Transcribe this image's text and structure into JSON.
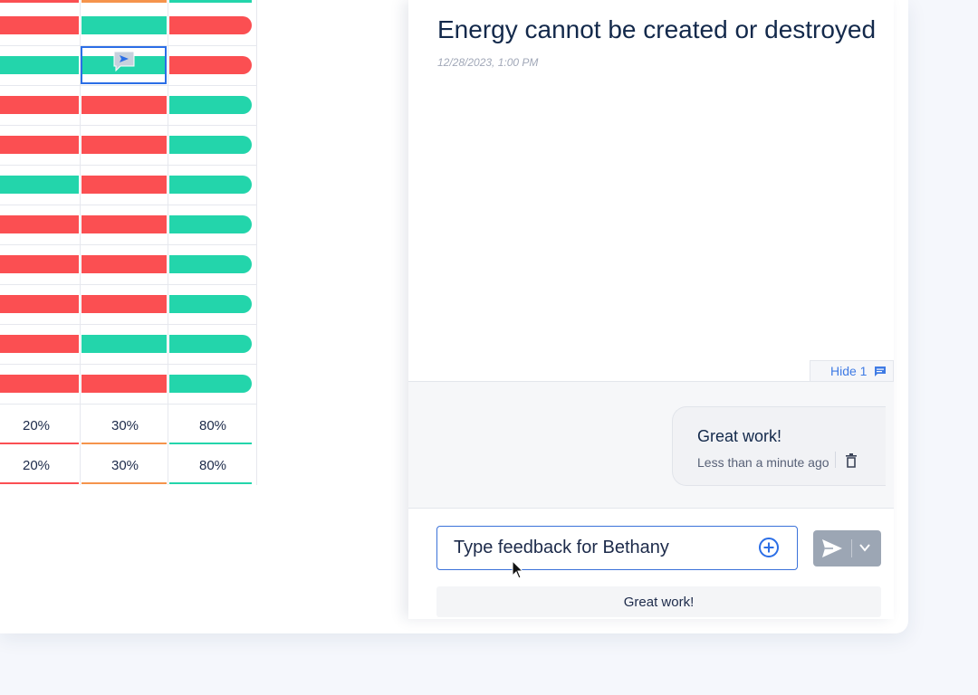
{
  "grid": {
    "rows": [
      [
        "r",
        "g",
        "r"
      ],
      [
        "g",
        "g",
        "r"
      ],
      [
        "r",
        "r",
        "g"
      ],
      [
        "r",
        "r",
        "g"
      ],
      [
        "g",
        "r",
        "g"
      ],
      [
        "r",
        "r",
        "g"
      ],
      [
        "r",
        "r",
        "g"
      ],
      [
        "r",
        "r",
        "g"
      ],
      [
        "r",
        "g",
        "g"
      ],
      [
        "r",
        "r",
        "g"
      ]
    ],
    "column_colors": [
      "#fb4f52",
      "#f5944c",
      "#23d5ab"
    ],
    "summary_rows": [
      [
        "20%",
        "30%",
        "80%"
      ],
      [
        "20%",
        "30%",
        "80%"
      ]
    ]
  },
  "panel": {
    "title": "Energy cannot be created or destroyed",
    "date": "12/28/2023, 1:00 PM",
    "hide_label": "Hide 1",
    "comment": {
      "text": "Great work!",
      "meta": "Less than a minute ago"
    },
    "input_placeholder": "Type feedback for Bethany",
    "suggestion": "Great work!"
  },
  "colors": {
    "green": "#23d5ab",
    "red": "#fb4f52",
    "accent": "#2b6ee6",
    "send_button": "#9ca6b4"
  }
}
